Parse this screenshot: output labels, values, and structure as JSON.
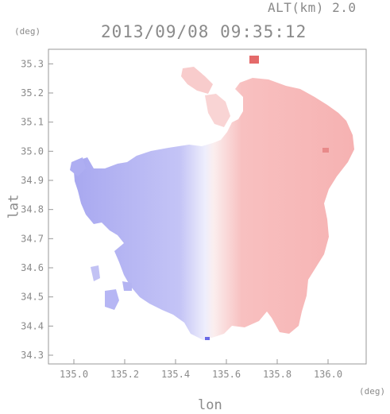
{
  "header": {
    "altitude_label": "ALT(km) 2.0",
    "timestamp": "2013/09/08 09:35:12"
  },
  "axes": {
    "y_unit": "(deg)",
    "x_unit": "(deg)",
    "y_label": "lat",
    "x_label": "lon",
    "x_ticks": [
      "135.0",
      "135.2",
      "135.4",
      "135.6",
      "135.8",
      "136.0"
    ],
    "y_ticks": [
      "34.3",
      "34.4",
      "34.5",
      "34.6",
      "34.7",
      "34.8",
      "34.9",
      "35.0",
      "35.1",
      "35.2",
      "35.3"
    ],
    "x_range": [
      134.9,
      136.15
    ],
    "y_range": [
      34.27,
      35.35
    ]
  },
  "colors": {
    "frame": "#9a9a9a",
    "text": "#8a8a8a",
    "negative": "#b8b8f4",
    "positive": "#f6b8b8"
  }
}
